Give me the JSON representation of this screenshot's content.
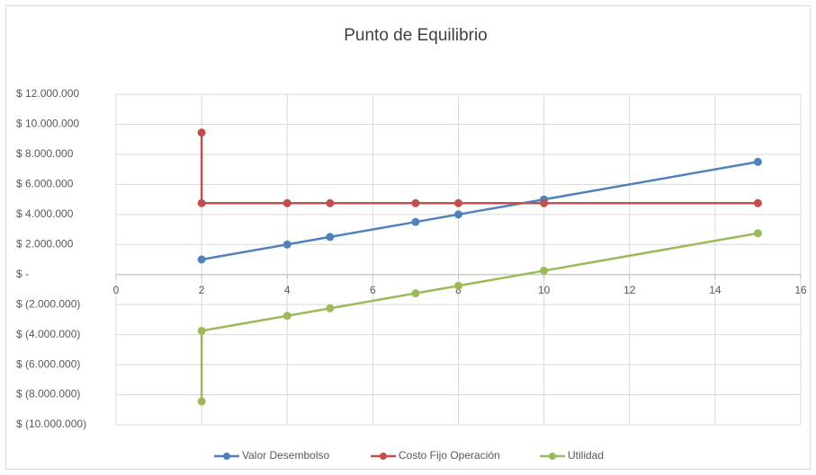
{
  "chart_data": {
    "type": "scatter-line",
    "title": "Punto de Equilibrio",
    "series": [
      {
        "name": "Valor Desembolso",
        "color": "#4f81bd",
        "x": [
          2,
          4,
          5,
          7,
          8,
          10,
          15
        ],
        "values": [
          1000000,
          2000000,
          2500000,
          3500000,
          4000000,
          5000000,
          7500000
        ]
      },
      {
        "name": "Costo Fijo Operación",
        "color": "#c0504d",
        "x": [
          2,
          2,
          4,
          5,
          7,
          8,
          10,
          15
        ],
        "values": [
          9450000,
          4750000,
          4750000,
          4750000,
          4750000,
          4750000,
          4750000,
          4750000
        ]
      },
      {
        "name": "Utilidad",
        "color": "#9bbb59",
        "x": [
          2,
          2,
          4,
          5,
          7,
          8,
          10,
          15
        ],
        "values": [
          -8450000,
          -3750000,
          -2750000,
          -2250000,
          -1250000,
          -750000,
          250000,
          2750000
        ]
      }
    ],
    "xlim": [
      0,
      16
    ],
    "xticks": [
      0,
      2,
      4,
      6,
      8,
      10,
      12,
      14,
      16
    ],
    "ylim": [
      -10000000,
      12000000
    ],
    "yticks": [
      {
        "value": -10000000,
        "label": "$ (10.000.000)"
      },
      {
        "value": -8000000,
        "label": "$ (8.000.000)"
      },
      {
        "value": -6000000,
        "label": "$ (6.000.000)"
      },
      {
        "value": -4000000,
        "label": "$ (4.000.000)"
      },
      {
        "value": -2000000,
        "label": "$ (2.000.000)"
      },
      {
        "value": 0,
        "label": "$ -"
      },
      {
        "value": 2000000,
        "label": "$ 2.000.000"
      },
      {
        "value": 4000000,
        "label": "$ 4.000.000"
      },
      {
        "value": 6000000,
        "label": "$ 6.000.000"
      },
      {
        "value": 8000000,
        "label": "$ 8.000.000"
      },
      {
        "value": 10000000,
        "label": "$ 10.000.000"
      },
      {
        "value": 12000000,
        "label": "$ 12.000.000"
      }
    ],
    "grid": true,
    "legend": "bottom"
  }
}
